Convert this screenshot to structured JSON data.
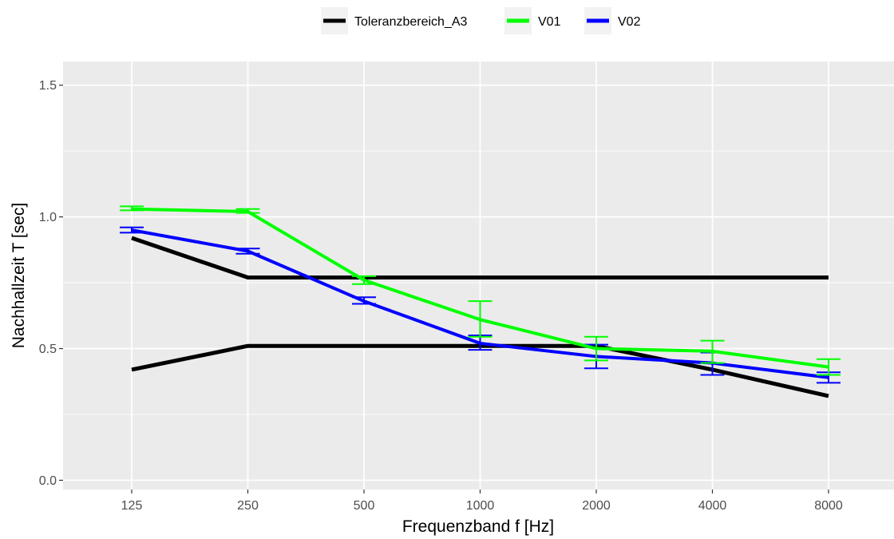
{
  "chart_data": {
    "type": "line",
    "x": [
      "125",
      "250",
      "500",
      "1000",
      "2000",
      "4000",
      "8000"
    ],
    "xlabel": "Frequenzband f [Hz]",
    "ylabel": "Nachhallzeit T [sec]",
    "ylim": [
      -0.035,
      1.59
    ],
    "yticks": [
      0.0,
      0.5,
      1.0,
      1.5
    ],
    "ytick_labels": [
      "0.0",
      "0.5",
      "1.0",
      "1.5"
    ],
    "grid": true,
    "legend_position": "top",
    "series": [
      {
        "name": "Toleranzbereich_A3",
        "color": "#000000",
        "values": [
          0.92,
          0.77,
          0.77,
          0.77,
          0.77,
          0.77,
          0.77
        ]
      },
      {
        "name": "Toleranzbereich_A3",
        "color": "#000000",
        "legend": false,
        "values": [
          0.42,
          0.51,
          0.51,
          0.51,
          0.51,
          0.42,
          0.32
        ]
      },
      {
        "name": "V01",
        "color": "#00ff00",
        "values": [
          1.03,
          1.02,
          0.76,
          0.61,
          0.5,
          0.49,
          0.43
        ],
        "error_low": [
          1.025,
          1.015,
          0.745,
          0.545,
          0.455,
          0.445,
          0.4
        ],
        "error_high": [
          1.04,
          1.03,
          0.775,
          0.68,
          0.545,
          0.53,
          0.46
        ]
      },
      {
        "name": "V02",
        "color": "#0000ff",
        "values": [
          0.95,
          0.87,
          0.68,
          0.52,
          0.47,
          0.445,
          0.39
        ],
        "error_low": [
          0.94,
          0.86,
          0.67,
          0.495,
          0.425,
          0.4,
          0.37
        ],
        "error_high": [
          0.96,
          0.88,
          0.695,
          0.55,
          0.515,
          0.485,
          0.41
        ]
      }
    ]
  }
}
